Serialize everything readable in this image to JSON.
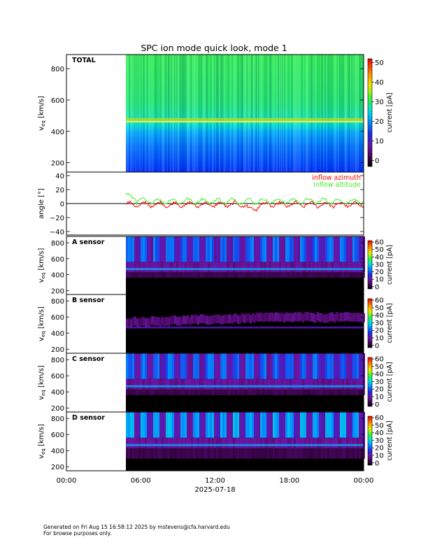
{
  "title": "SPC ion mode quick look, mode 1",
  "footer": {
    "line1": "Generated on Fri Aug 15 16:58:12 2025 by mstevens@cfa.harvard.edu",
    "line2": "For browse purposes only."
  },
  "colors": {
    "azimuth": "#ff0000",
    "altitude": "#44ee22"
  },
  "chart_data": [
    {
      "type": "heatmap",
      "panel": "total",
      "label": "TOTAL",
      "ylabel": "v_eq [km/s]",
      "ylabel_main": "v",
      "ylabel_sub": "eq",
      "ylabel_unit": " [km/s]",
      "ylim": [
        140,
        890
      ],
      "yticks": [
        200,
        400,
        600,
        800
      ],
      "yticklabels": [
        "200",
        "400",
        "600",
        "800"
      ],
      "xlim_hours": [
        0,
        24
      ],
      "data_start_hour": 4.8,
      "colorbar": {
        "label": "current [pA]",
        "range": [
          -3,
          52
        ],
        "ticks": [
          0,
          10,
          20,
          30,
          40,
          50
        ],
        "ticklabels": [
          "0",
          "10",
          "20",
          "30",
          "40",
          "50"
        ]
      }
    },
    {
      "type": "line",
      "panel": "angle",
      "ylabel": "angle [°]",
      "ylim": [
        -45,
        45
      ],
      "yticks": [
        -40,
        -20,
        0,
        20,
        40
      ],
      "yticklabels": [
        "−40",
        "−20",
        "0",
        "20",
        "40"
      ],
      "series": [
        {
          "name": "inflow azimuth",
          "color": "#ff0000",
          "baseline": -1.5,
          "spread": 3.5
        },
        {
          "name": "inflow altitude",
          "color": "#44ee22",
          "baseline": 3.5,
          "spread": 3.5
        }
      ]
    },
    {
      "type": "heatmap",
      "panel": "sensor",
      "label": "A sensor",
      "ylabel_main": "v",
      "ylabel_sub": "eq",
      "ylabel_unit": " [km/s]",
      "ylim": [
        150,
        880
      ],
      "yticks": [
        200,
        400,
        600,
        800
      ],
      "yticklabels": [
        "200",
        "400",
        "600",
        "800"
      ],
      "colorbar": {
        "label": "current [pA]",
        "range": [
          -3,
          62
        ],
        "ticks": [
          0,
          10,
          20,
          30,
          40,
          50,
          60
        ],
        "ticklabels": [
          "0",
          "10",
          "20",
          "30",
          "40",
          "50",
          "60"
        ]
      }
    },
    {
      "type": "heatmap",
      "panel": "sensor",
      "label": "B sensor",
      "ylabel_main": "v",
      "ylabel_sub": "eq",
      "ylabel_unit": " [km/s]",
      "ylim": [
        150,
        880
      ],
      "yticks": [
        200,
        400,
        600,
        800
      ],
      "yticklabels": [
        "200",
        "400",
        "600",
        "800"
      ],
      "colorbar": {
        "label": "current [pA]",
        "range": [
          -3,
          62
        ],
        "ticks": [
          0,
          10,
          20,
          30,
          40,
          50,
          60
        ],
        "ticklabels": [
          "0",
          "10",
          "20",
          "30",
          "40",
          "50",
          "60"
        ]
      }
    },
    {
      "type": "heatmap",
      "panel": "sensor",
      "label": "C sensor",
      "ylabel_main": "v",
      "ylabel_sub": "eq",
      "ylabel_unit": " [km/s]",
      "ylim": [
        150,
        880
      ],
      "yticks": [
        200,
        400,
        600,
        800
      ],
      "yticklabels": [
        "200",
        "400",
        "600",
        "800"
      ],
      "colorbar": {
        "label": "current [pA]",
        "range": [
          -3,
          62
        ],
        "ticks": [
          0,
          10,
          20,
          30,
          40,
          50,
          60
        ],
        "ticklabels": [
          "0",
          "10",
          "20",
          "30",
          "40",
          "50",
          "60"
        ]
      }
    },
    {
      "type": "heatmap",
      "panel": "sensor",
      "label": "D sensor",
      "ylabel_main": "v",
      "ylabel_sub": "eq",
      "ylabel_unit": " [km/s]",
      "ylim": [
        150,
        880
      ],
      "yticks": [
        200,
        400,
        600,
        800
      ],
      "yticklabels": [
        "200",
        "400",
        "600",
        "800"
      ],
      "colorbar": {
        "label": "current [pA]",
        "range": [
          -3,
          62
        ],
        "ticks": [
          0,
          10,
          20,
          30,
          40,
          50,
          60
        ],
        "ticklabels": [
          "0",
          "10",
          "20",
          "30",
          "40",
          "50",
          "60"
        ]
      }
    }
  ],
  "xaxis": {
    "ticks_hours": [
      0,
      6,
      12,
      18,
      24
    ],
    "ticklabels": [
      "00:00",
      "06:00",
      "12:00",
      "18:00",
      "00:00"
    ],
    "date_label": "2025-07-18"
  }
}
